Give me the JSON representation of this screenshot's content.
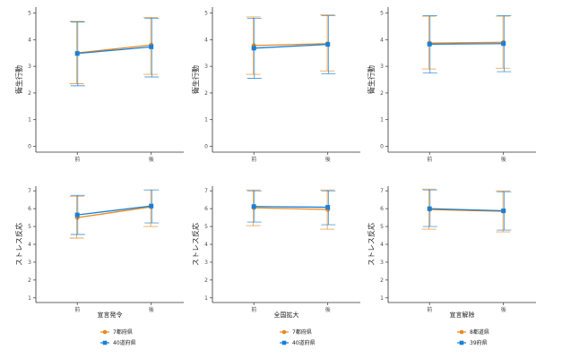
{
  "colors": {
    "orange": "#e8891d",
    "blue": "#1a7fd6",
    "axis": "#333333"
  },
  "chart_data": [
    {
      "type": "line",
      "ylabel": "衛生行動",
      "xlabel": "",
      "x": [
        "前",
        "後"
      ],
      "ylim": [
        0,
        5
      ],
      "yticks": [
        0,
        1,
        2,
        3,
        4,
        5
      ],
      "series": [
        {
          "name": "7都府県",
          "color": "orange",
          "values": [
            3.5,
            3.8
          ],
          "lower": [
            2.35,
            2.7
          ],
          "upper": [
            4.68,
            4.83
          ]
        },
        {
          "name": "40道府県",
          "color": "blue",
          "values": [
            3.48,
            3.73
          ],
          "lower": [
            2.27,
            2.6
          ],
          "upper": [
            4.66,
            4.8
          ]
        }
      ]
    },
    {
      "type": "line",
      "ylabel": "衛生行動",
      "xlabel": "",
      "x": [
        "前",
        "後"
      ],
      "ylim": [
        0,
        5
      ],
      "yticks": [
        0,
        1,
        2,
        3,
        4,
        5
      ],
      "series": [
        {
          "name": "7都府県",
          "color": "orange",
          "values": [
            3.78,
            3.85
          ],
          "lower": [
            2.7,
            2.83
          ],
          "upper": [
            4.85,
            4.93
          ]
        },
        {
          "name": "40道府県",
          "color": "blue",
          "values": [
            3.68,
            3.82
          ],
          "lower": [
            2.55,
            2.72
          ],
          "upper": [
            4.8,
            4.9
          ]
        }
      ]
    },
    {
      "type": "line",
      "ylabel": "衛生行動",
      "xlabel": "",
      "x": [
        "前",
        "後"
      ],
      "ylim": [
        0,
        5
      ],
      "yticks": [
        0,
        1,
        2,
        3,
        4,
        5
      ],
      "series": [
        {
          "name": "8都道県",
          "color": "orange",
          "values": [
            3.87,
            3.9
          ],
          "lower": [
            2.9,
            2.93
          ],
          "upper": [
            4.88,
            4.88
          ]
        },
        {
          "name": "39府県",
          "color": "blue",
          "values": [
            3.83,
            3.85
          ],
          "lower": [
            2.75,
            2.8
          ],
          "upper": [
            4.9,
            4.9
          ]
        }
      ]
    },
    {
      "type": "line",
      "ylabel": "ストレス反応",
      "xlabel": "宣言発令",
      "x": [
        "前",
        "後"
      ],
      "ylim": [
        1,
        7
      ],
      "yticks": [
        1,
        2,
        3,
        4,
        5,
        6,
        7
      ],
      "series": [
        {
          "name": "7都府県",
          "color": "orange",
          "values": [
            5.5,
            6.1
          ],
          "lower": [
            4.35,
            5.0
          ],
          "upper": [
            6.7,
            7.05
          ]
        },
        {
          "name": "40道府県",
          "color": "blue",
          "values": [
            5.65,
            6.15
          ],
          "lower": [
            4.55,
            5.2
          ],
          "upper": [
            6.75,
            7.05
          ]
        }
      ]
    },
    {
      "type": "line",
      "ylabel": "ストレス反応",
      "xlabel": "全国拡大",
      "x": [
        "前",
        "後"
      ],
      "ylim": [
        1,
        7
      ],
      "yticks": [
        1,
        2,
        3,
        4,
        5,
        6,
        7
      ],
      "series": [
        {
          "name": "7都府県",
          "color": "orange",
          "values": [
            6.05,
            5.95
          ],
          "lower": [
            5.05,
            4.85
          ],
          "upper": [
            7.05,
            7.05
          ]
        },
        {
          "name": "40道府県",
          "color": "blue",
          "values": [
            6.12,
            6.08
          ],
          "lower": [
            5.25,
            5.1
          ],
          "upper": [
            7.0,
            7.0
          ]
        }
      ]
    },
    {
      "type": "line",
      "ylabel": "ストレス反応",
      "xlabel": "宣言解除",
      "x": [
        "前",
        "後"
      ],
      "ylim": [
        1,
        7
      ],
      "yticks": [
        1,
        2,
        3,
        4,
        5,
        6,
        7
      ],
      "series": [
        {
          "name": "8都道県",
          "color": "orange",
          "values": [
            5.95,
            5.85
          ],
          "lower": [
            4.85,
            4.7
          ],
          "upper": [
            7.1,
            7.0
          ]
        },
        {
          "name": "39府県",
          "color": "blue",
          "values": [
            6.0,
            5.88
          ],
          "lower": [
            5.0,
            4.8
          ],
          "upper": [
            7.05,
            6.95
          ]
        }
      ]
    }
  ],
  "legends": [
    [
      {
        "label": "7都府県",
        "color": "orange"
      },
      {
        "label": "40道府県",
        "color": "blue"
      }
    ],
    [
      {
        "label": "7都府県",
        "color": "orange"
      },
      {
        "label": "40道府県",
        "color": "blue"
      }
    ],
    [
      {
        "label": "8都道県",
        "color": "orange"
      },
      {
        "label": "39府県",
        "color": "blue"
      }
    ]
  ]
}
